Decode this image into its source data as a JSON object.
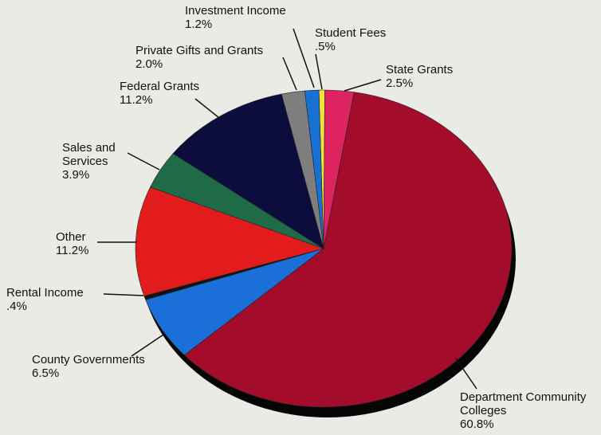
{
  "chart_data": {
    "type": "pie",
    "categories": [
      "Student Fees",
      "State Grants",
      "Department Community Colleges",
      "County Governments",
      "Rental Income",
      "Other",
      "Sales and Services",
      "Federal Grants",
      "Private Gifts and Grants",
      "Investment Income"
    ],
    "values": [
      0.5,
      2.5,
      60.8,
      6.5,
      0.4,
      11.2,
      3.9,
      11.2,
      2.0,
      1.2
    ],
    "value_labels": [
      ".5%",
      "2.5%",
      "60.8%",
      "6.5%",
      ".4%",
      "11.2%",
      "3.9%",
      "11.2%",
      "2.0%",
      "1.2%"
    ],
    "colors": [
      "#f2e23a",
      "#de2460",
      "#a30d2b",
      "#1a6fd8",
      "#141414",
      "#e21c1c",
      "#1f6b48",
      "#0d0d3d",
      "#7e7e7e",
      "#1870d2"
    ]
  }
}
